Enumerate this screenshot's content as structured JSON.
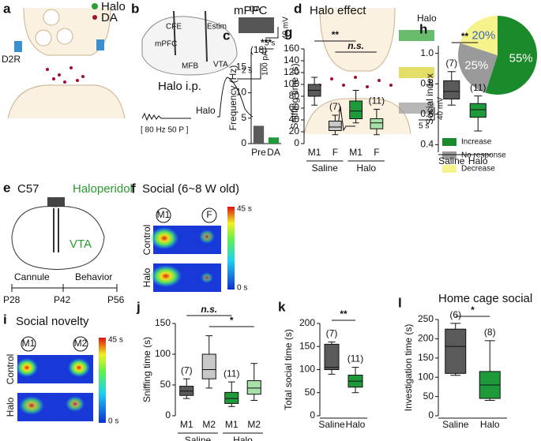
{
  "diagrams": {
    "a": {
      "letter": "a",
      "legend": [
        "Halo",
        "DA"
      ],
      "receptor": "D2R"
    },
    "b": {
      "letter": "b",
      "labels": [
        "CFE",
        "Estim",
        "mPFC",
        "MFB",
        "VTA"
      ],
      "caption": "Halo i.p.",
      "stim": "[ 80 Hz 50 P ]",
      "trace": "Halo",
      "scale": [
        "2 s",
        "100 pA"
      ]
    },
    "c": {
      "inset": "DA",
      "scale": [
        "5 s",
        "40 mV"
      ]
    },
    "d": {
      "trace": "Halo",
      "scale": [
        "5 s",
        "40 mV"
      ]
    },
    "e": {
      "letter": "e",
      "strain": "C57",
      "drug": "Haloperidol",
      "region": "VTA",
      "steps": [
        "Cannule",
        "Behavior"
      ],
      "timeline": [
        "P28",
        "P42",
        "P56"
      ]
    },
    "f": {
      "letter": "f",
      "title": "Social (6~8 W old)",
      "targets": [
        "M1",
        "F"
      ],
      "rows": [
        "Control",
        "Halo"
      ],
      "scale": [
        "45 s",
        "0 s"
      ]
    },
    "i": {
      "letter": "i",
      "title": "Social novelty",
      "targets": [
        "M1",
        "M2"
      ],
      "rows": [
        "Control",
        "Halo"
      ],
      "scale": [
        "45 s",
        "0 s"
      ]
    }
  },
  "chart_data": [
    {
      "type": "bar",
      "letter": "c",
      "title": "mPFC",
      "ylabel": "Frequency (Hz)",
      "categories": [
        "Pre",
        "DA"
      ],
      "values": [
        3.5,
        1.2
      ],
      "colors": [
        "#5a5a5a",
        "#1f9a3a"
      ],
      "ylim": [
        0,
        18
      ],
      "yticks": [
        0,
        5,
        10,
        15
      ],
      "n_labels": [
        "(18)",
        null
      ],
      "comparisons": [
        {
          "label": "***",
          "pair": [
            0,
            1
          ]
        }
      ]
    },
    {
      "type": "pie",
      "letter": "d",
      "title": "Halo effect",
      "categories": [
        "Increase",
        "No response",
        "Decrease"
      ],
      "values": [
        55,
        25,
        20
      ],
      "value_labels": [
        "55%",
        "25%",
        "20%"
      ],
      "colors": [
        "#1a8a2a",
        "#9a9a9a",
        "#f7f38c"
      ],
      "legend": "bottom"
    },
    {
      "type": "box",
      "letter": "g",
      "ylabel": "Sniffing time (s)",
      "categories": [
        "M1",
        "F",
        "M1",
        "F"
      ],
      "groups": [
        "Saline",
        "Halo"
      ],
      "values": [
        [
          65,
          80,
          90,
          100,
          112
        ],
        [
          15,
          22,
          28,
          38,
          48
        ],
        [
          35,
          42,
          55,
          72,
          90
        ],
        [
          15,
          25,
          35,
          42,
          58
        ]
      ],
      "colors": [
        "#5a5a5a",
        "#c8c8c8",
        "#1f9a3a",
        "#a8e0a8"
      ],
      "ylim": [
        0,
        160
      ],
      "yticks": [
        0,
        20,
        40,
        60,
        80,
        100,
        120,
        140,
        160
      ],
      "n_labels": [
        null,
        "(7)",
        null,
        "(11)"
      ],
      "comparisons": [
        {
          "label": "**",
          "pair": [
            0,
            2
          ]
        },
        {
          "label": "n.s.",
          "pair": [
            1,
            3
          ]
        }
      ]
    },
    {
      "type": "box",
      "letter": "h",
      "ylabel": "Social index",
      "categories": [
        "Saline",
        "Halo"
      ],
      "values": [
        [
          0.66,
          0.7,
          0.75,
          0.82,
          0.88
        ],
        [
          0.49,
          0.58,
          0.63,
          0.67,
          0.72
        ]
      ],
      "colors": [
        "#5a5a5a",
        "#1f9a3a"
      ],
      "ylim": [
        0.35,
        1.05
      ],
      "yticks": [
        0.4,
        0.6,
        0.8,
        {
          "value": 1,
          "label": "1.0"
        }
      ],
      "n_labels": [
        "(7)",
        "(11)"
      ],
      "comparisons": [
        {
          "label": "**",
          "pair": [
            0,
            1
          ]
        }
      ]
    },
    {
      "type": "box",
      "letter": "j",
      "ylabel": "Sniffing time (s)",
      "categories": [
        "M1",
        "M2",
        "M1",
        "M2"
      ],
      "groups": [
        "Saline",
        "Halo"
      ],
      "values": [
        [
          28,
          33,
          40,
          48,
          60
        ],
        [
          45,
          60,
          75,
          100,
          130
        ],
        [
          15,
          20,
          28,
          38,
          55
        ],
        [
          25,
          35,
          45,
          57,
          85
        ]
      ],
      "colors": [
        "#5a5a5a",
        "#c8c8c8",
        "#1f9a3a",
        "#a8e0a8"
      ],
      "ylim": [
        0,
        150
      ],
      "yticks": [
        0,
        50,
        100,
        150
      ],
      "n_labels": [
        "(7)",
        null,
        "(11)",
        null
      ],
      "comparisons": [
        {
          "label": "n.s.",
          "pair": [
            0,
            2
          ]
        },
        {
          "label": "*",
          "pair": [
            1,
            3
          ]
        }
      ]
    },
    {
      "type": "box",
      "letter": "k",
      "ylabel": "Total social time (s)",
      "categories": [
        "Saline",
        "Halo"
      ],
      "values": [
        [
          90,
          100,
          105,
          155,
          160
        ],
        [
          50,
          62,
          75,
          88,
          105
        ]
      ],
      "colors": [
        "#5a5a5a",
        "#1f9a3a"
      ],
      "ylim": [
        0,
        200
      ],
      "yticks": [
        0,
        50,
        100,
        150,
        200
      ],
      "n_labels": [
        "(7)",
        "(11)"
      ],
      "comparisons": [
        {
          "label": "**",
          "pair": [
            0,
            1
          ]
        }
      ]
    },
    {
      "type": "box",
      "letter": "l",
      "title": "Home cage social",
      "ylabel": "Investigation time (s)",
      "categories": [
        "Saline",
        "Halo"
      ],
      "values": [
        [
          105,
          110,
          180,
          225,
          240
        ],
        [
          40,
          45,
          80,
          115,
          195
        ]
      ],
      "colors": [
        "#5a5a5a",
        "#1f9a3a"
      ],
      "ylim": [
        0,
        250
      ],
      "yticks": [
        0,
        50,
        100,
        150,
        200,
        250
      ],
      "n_labels": [
        "(6)",
        "(8)"
      ],
      "comparisons": [
        {
          "label": "*",
          "pair": [
            0,
            1
          ]
        }
      ]
    }
  ]
}
